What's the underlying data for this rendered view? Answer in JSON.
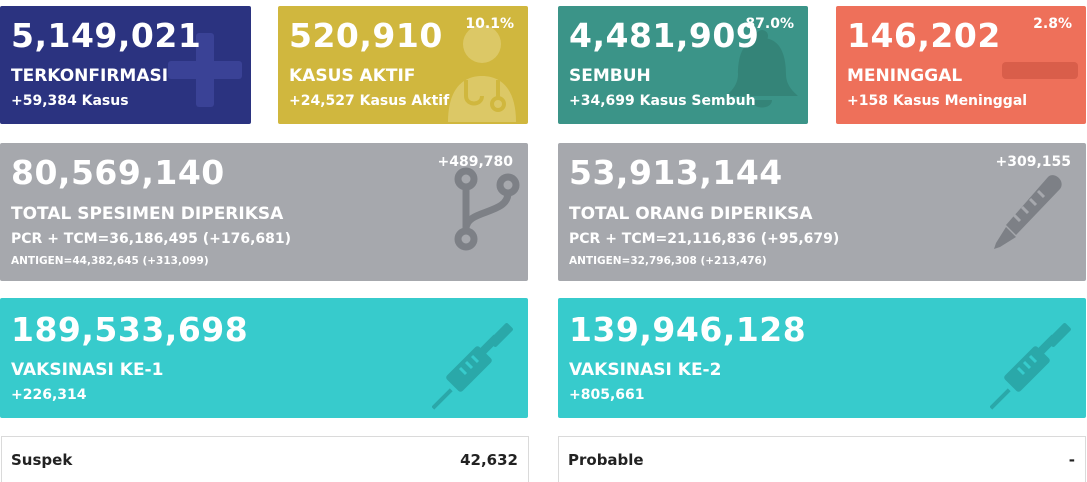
{
  "konfirmasi": {
    "value": "5,149,021",
    "label": "TERKONFIRMASI",
    "sub": "+59,384 Kasus",
    "icon": "plus-icon"
  },
  "aktif": {
    "value": "520,910",
    "pct": "10.1%",
    "label": "KASUS AKTIF",
    "sub": "+24,527 Kasus Aktif",
    "icon": "doctor-icon"
  },
  "sembuh": {
    "value": "4,481,909",
    "pct": "87.0%",
    "label": "SEMBUH",
    "sub": "+34,699 Kasus Sembuh",
    "icon": "bell-icon"
  },
  "meninggal": {
    "value": "146,202",
    "pct": "2.8%",
    "label": "MENINGGAL",
    "sub": "+158 Kasus Meninggal",
    "icon": "minus-icon"
  },
  "spesimen": {
    "value": "80,569,140",
    "delta": "+489,780",
    "label": "TOTAL SPESIMEN DIPERIKSA",
    "pcr": "PCR + TCM=36,186,495 (+176,681)",
    "antigen": "ANTIGEN=44,382,645 (+313,099)",
    "icon": "branch-icon"
  },
  "orang": {
    "value": "53,913,144",
    "delta": "+309,155",
    "label": "TOTAL ORANG DIPERIKSA",
    "pcr": "PCR + TCM=21,116,836 (+95,679)",
    "antigen": "ANTIGEN=32,796,308 (+213,476)",
    "icon": "thermometer-icon"
  },
  "vaksin1": {
    "value": "189,533,698",
    "label": "VAKSINASI KE-1",
    "sub": "+226,314",
    "icon": "syringe-icon"
  },
  "vaksin2": {
    "value": "139,946,128",
    "label": "VAKSINASI KE-2",
    "sub": "+805,661",
    "icon": "syringe-icon"
  },
  "suspek": {
    "label": "Suspek",
    "value": "42,632"
  },
  "probable": {
    "label": "Probable",
    "value": "-"
  },
  "colors": {
    "konfirmasi": "#2b3380",
    "aktif": "#d0b73e",
    "sembuh": "#3b9488",
    "meninggal": "#ee705a",
    "gray": "#a6a8ad",
    "vaksin": "#37cbcc"
  }
}
